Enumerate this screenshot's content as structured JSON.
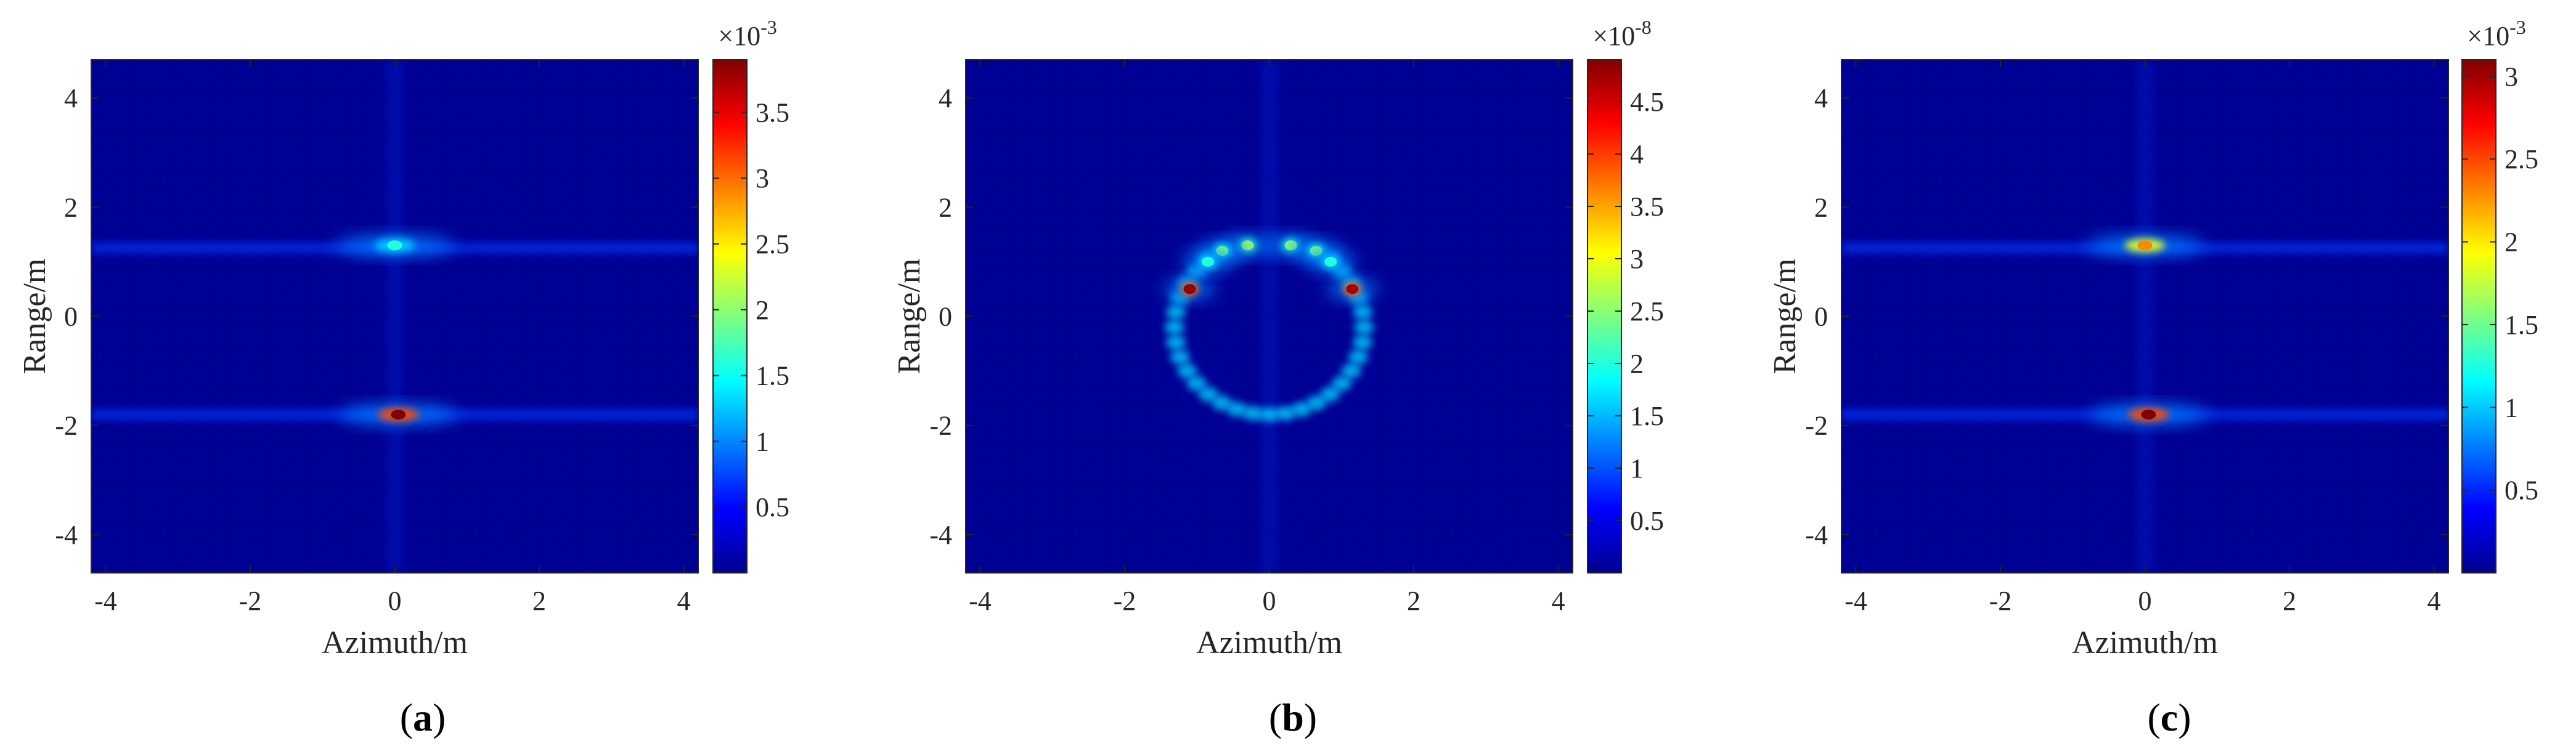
{
  "chart_data": [
    {
      "type": "heatmap",
      "panel_label": "a",
      "xlabel": "Azimuth/m",
      "ylabel": "Range/m",
      "xlim": [
        -4.2,
        4.2
      ],
      "ylim": [
        -4.7,
        4.7
      ],
      "xticks": [
        -4,
        -2,
        0,
        2,
        4
      ],
      "xtick_labels": [
        "-4",
        "-2",
        "0",
        "2",
        "4"
      ],
      "yticks": [
        -4,
        -2,
        0,
        2,
        4
      ],
      "ytick_labels": [
        "-4",
        "-2",
        "0",
        "2",
        "4"
      ],
      "colormap": "jet",
      "colorbar": {
        "min": 0.0001,
        "max": 0.0039,
        "exponent_label": "×10",
        "exponent": "-3",
        "ticks": [
          0.5,
          1,
          1.5,
          2,
          2.5,
          3,
          3.5
        ],
        "tick_labels": [
          "0.5",
          "1",
          "1.5",
          "2",
          "2.5",
          "3",
          "3.5"
        ],
        "scale_max": 3.9
      },
      "hotspots": [
        {
          "x": 0.05,
          "y": -1.8,
          "value": 3.9
        },
        {
          "x": 0.0,
          "y": 1.3,
          "value": 1.6
        }
      ],
      "streaks_y": [
        1.25,
        -1.8
      ]
    },
    {
      "type": "heatmap",
      "panel_label": "b",
      "xlabel": "Azimuth/m",
      "ylabel": "Range/m",
      "xlim": [
        -4.2,
        4.2
      ],
      "ylim": [
        -4.7,
        4.7
      ],
      "xticks": [
        -4,
        -2,
        0,
        2,
        4
      ],
      "xtick_labels": [
        "-4",
        "-2",
        "0",
        "2",
        "4"
      ],
      "yticks": [
        -4,
        -2,
        0,
        2,
        4
      ],
      "ytick_labels": [
        "-4",
        "-2",
        "0",
        "2",
        "4"
      ],
      "colormap": "jet",
      "colorbar": {
        "min": 0.0,
        "max": 4.9e-08,
        "exponent_label": "×10",
        "exponent": "-8",
        "ticks": [
          0.5,
          1,
          1.5,
          2,
          2.5,
          3,
          3.5,
          4,
          4.5
        ],
        "tick_labels": [
          "0.5",
          "1",
          "1.5",
          "2",
          "2.5",
          "3",
          "3.5",
          "4",
          "4.5"
        ],
        "scale_max": 4.9
      },
      "hotspots": [
        {
          "x": -1.1,
          "y": 0.5,
          "value": 4.8
        },
        {
          "x": 1.15,
          "y": 0.5,
          "value": 4.7
        },
        {
          "x": -0.3,
          "y": 1.3,
          "value": 2.6
        },
        {
          "x": 0.3,
          "y": 1.3,
          "value": 2.5
        },
        {
          "x": -0.65,
          "y": 1.2,
          "value": 2.4
        },
        {
          "x": 0.65,
          "y": 1.2,
          "value": 2.4
        },
        {
          "x": -0.85,
          "y": 1.0,
          "value": 2.0
        },
        {
          "x": 0.85,
          "y": 1.0,
          "value": 2.0
        }
      ],
      "ring": {
        "cx": 0.0,
        "cy": -0.2,
        "r": 1.6
      }
    },
    {
      "type": "heatmap",
      "panel_label": "c",
      "xlabel": "Azimuth/m",
      "ylabel": "Range/m",
      "xlim": [
        -4.2,
        4.2
      ],
      "ylim": [
        -4.7,
        4.7
      ],
      "xticks": [
        -4,
        -2,
        0,
        2,
        4
      ],
      "xtick_labels": [
        "-4",
        "-2",
        "0",
        "2",
        "4"
      ],
      "yticks": [
        -4,
        -2,
        0,
        2,
        4
      ],
      "ytick_labels": [
        "-4",
        "-2",
        "0",
        "2",
        "4"
      ],
      "colormap": "jet",
      "colorbar": {
        "min": 0.0,
        "max": 0.0031,
        "exponent_label": "×10",
        "exponent": "-3",
        "ticks": [
          0.5,
          1,
          1.5,
          2,
          2.5,
          3
        ],
        "tick_labels": [
          "0.5",
          "1",
          "1.5",
          "2",
          "2.5",
          "3"
        ],
        "scale_max": 3.1
      },
      "hotspots": [
        {
          "x": 0.05,
          "y": -1.8,
          "value": 3.1
        },
        {
          "x": 0.0,
          "y": 1.3,
          "value": 2.3
        }
      ],
      "streaks_y": [
        1.25,
        -1.8
      ]
    }
  ]
}
